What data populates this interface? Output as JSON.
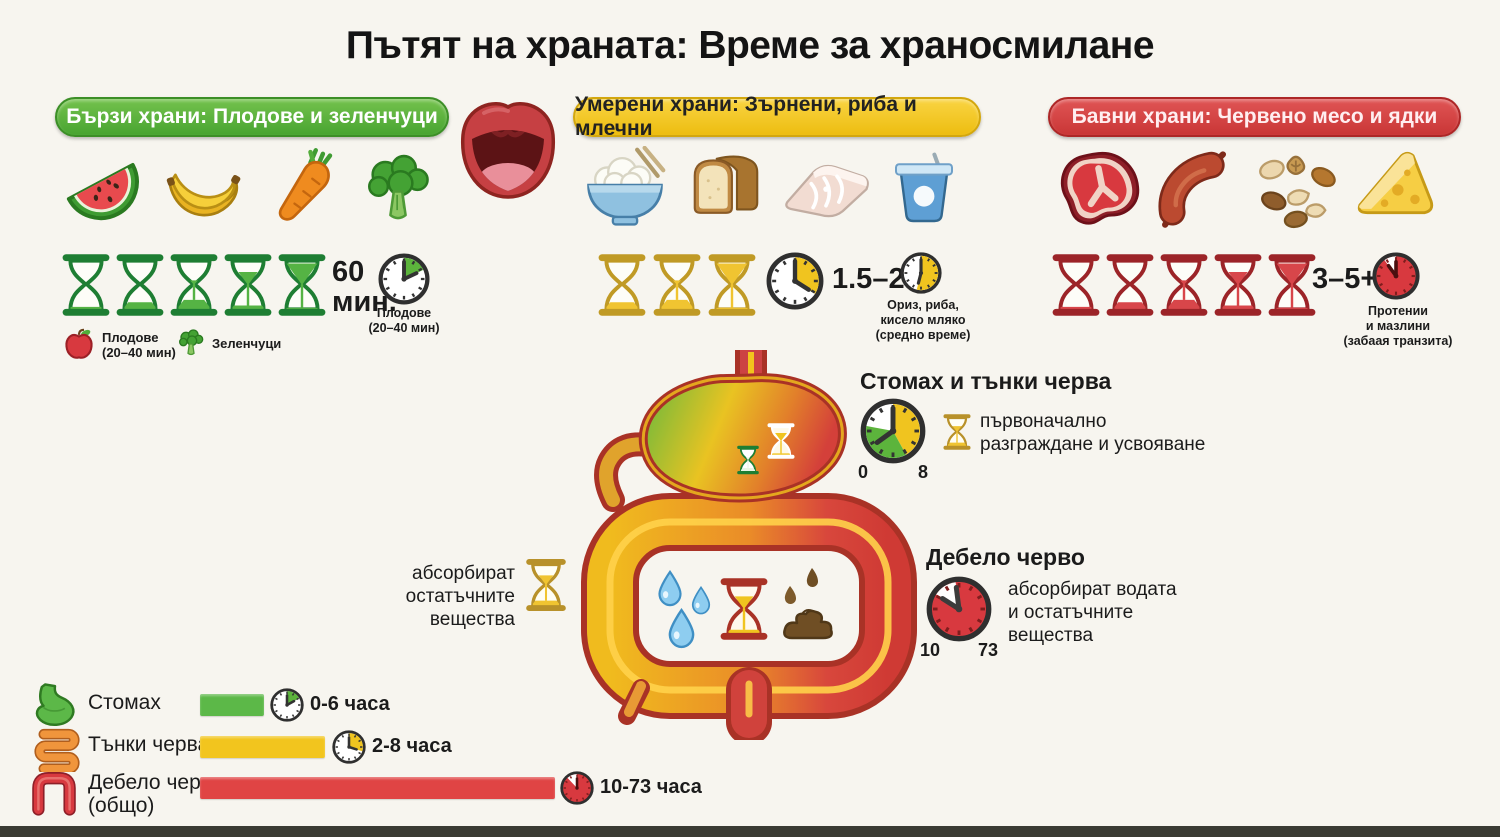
{
  "title": "Пътят на храната: Време за храносмилане",
  "palette": {
    "green": "#4fae3a",
    "yellow": "#f0c41f",
    "red": "#d8393f"
  },
  "sections": {
    "fast": {
      "header": "Бързи храни: Плодове и зеленчуци",
      "foods": [
        "watermelon",
        "banana",
        "carrot",
        "broccoli"
      ],
      "hourglass_levels": [
        0,
        1,
        2,
        3,
        4
      ],
      "time_value": "60",
      "time_unit": "мин.",
      "clock_caption": "Плодове\n(20–40 мин)",
      "legend": [
        {
          "icon": "apple",
          "label": "Плодове\n(20–40 мин)"
        },
        {
          "icon": "broccoli",
          "label": "Зеленчуци"
        }
      ]
    },
    "moderate": {
      "header": "Умерени храни: Зърнени, риба и млечни",
      "foods": [
        "rice",
        "bread",
        "fish",
        "yogurt"
      ],
      "hourglass_levels": [
        1,
        2,
        4
      ],
      "time_value": "1.5–2",
      "clock_caption": "Ориз, риба,\nкисело мляко\n(средно време)"
    },
    "slow": {
      "header": "Бавни храни: Червено месо и ядки",
      "foods": [
        "steak",
        "sausage",
        "nuts",
        "cheese"
      ],
      "hourglass_levels": [
        0,
        1,
        2,
        3,
        4
      ],
      "time_value": "3–5+",
      "clock_caption": "Протении\nи мазлини\n(забаая транзита)"
    }
  },
  "annotations": {
    "stomach_small_intestine": {
      "title": "Стомах и тънки черва",
      "clock_start": "0",
      "clock_end": "8",
      "text": "първоначално\nразграждане и усвояване"
    },
    "absorb_residues": {
      "text": "абсорбират\nостатъчните вещества"
    },
    "large_intestine": {
      "title": "Дебело черво",
      "clock_start": "10",
      "clock_end": "73",
      "text": "абсорбират водата\nи остатъчните\nвещества"
    }
  },
  "legend_rows": [
    {
      "organ": "Стомах",
      "time": "0-6 часа"
    },
    {
      "organ": "Тънки черва",
      "time": "2-8 часа"
    },
    {
      "organ": "Дебело черво\n(общо)",
      "time": "10-73 часа"
    }
  ]
}
